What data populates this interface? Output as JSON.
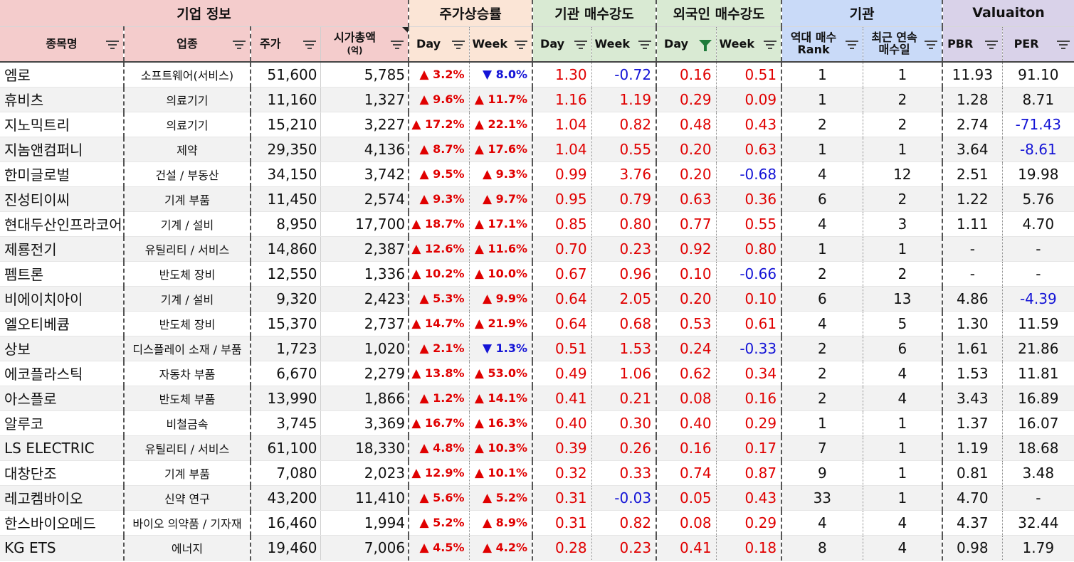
{
  "groups": {
    "company": "기업 정보",
    "price_rise": "주가상승률",
    "inst_strength": "기관 매수강도",
    "foreign_strength": "외국인 매수강도",
    "institution": "기관",
    "valuation": "Valuaiton"
  },
  "headers": {
    "name": "종목명",
    "industry": "업종",
    "price": "주가",
    "mcap_line1": "시가총액",
    "mcap_line2": "(억)",
    "day": "Day",
    "week": "Week",
    "rank_line1": "역대 매수",
    "rank_line2": "Rank",
    "streak_line1": "최근 연속",
    "streak_line2": "매수일",
    "pbr": "PBR",
    "per": "PER"
  },
  "icons": {
    "filter": "filter-icon",
    "active_filter": "funnel-filter-active-icon",
    "up": "▲",
    "down": "▼"
  },
  "colors": {
    "positive": "#e00000",
    "negative": "#1414d6",
    "company_header": "#f4cccc",
    "price_header": "#fbe5d6",
    "flow_header": "#d9ead3",
    "institution_header": "#c9daf8",
    "valuation_header": "#d9d2e9"
  },
  "rows": [
    {
      "name": "엠로",
      "industry": "소프트웨어(서비스)",
      "price": "51,600",
      "mcap": "5,785",
      "day_dir": "▲",
      "day_pct": "3.2%",
      "week_dir": "▼",
      "week_pct": "8.0%",
      "inst_day": "1.30",
      "inst_week": "-0.72",
      "frgn_day": "0.16",
      "frgn_week": "0.51",
      "rank": "1",
      "streak": "1",
      "pbr": "11.93",
      "per": "91.10"
    },
    {
      "name": "휴비츠",
      "industry": "의료기기",
      "price": "11,160",
      "mcap": "1,327",
      "day_dir": "▲",
      "day_pct": "9.6%",
      "week_dir": "▲",
      "week_pct": "11.7%",
      "inst_day": "1.16",
      "inst_week": "1.19",
      "frgn_day": "0.29",
      "frgn_week": "0.09",
      "rank": "1",
      "streak": "2",
      "pbr": "1.28",
      "per": "8.71"
    },
    {
      "name": "지노믹트리",
      "industry": "의료기기",
      "price": "15,210",
      "mcap": "3,227",
      "day_dir": "▲",
      "day_pct": "17.2%",
      "week_dir": "▲",
      "week_pct": "22.1%",
      "inst_day": "1.04",
      "inst_week": "0.82",
      "frgn_day": "0.48",
      "frgn_week": "0.43",
      "rank": "2",
      "streak": "2",
      "pbr": "2.74",
      "per": "-71.43"
    },
    {
      "name": "지놈앤컴퍼니",
      "industry": "제약",
      "price": "29,350",
      "mcap": "4,136",
      "day_dir": "▲",
      "day_pct": "8.7%",
      "week_dir": "▲",
      "week_pct": "17.6%",
      "inst_day": "1.04",
      "inst_week": "0.55",
      "frgn_day": "0.20",
      "frgn_week": "0.63",
      "rank": "1",
      "streak": "1",
      "pbr": "3.64",
      "per": "-8.61"
    },
    {
      "name": "한미글로벌",
      "industry": "건설 / 부동산",
      "price": "34,150",
      "mcap": "3,742",
      "day_dir": "▲",
      "day_pct": "9.5%",
      "week_dir": "▲",
      "week_pct": "9.3%",
      "inst_day": "0.99",
      "inst_week": "3.76",
      "frgn_day": "0.20",
      "frgn_week": "-0.68",
      "rank": "4",
      "streak": "12",
      "pbr": "2.51",
      "per": "19.98"
    },
    {
      "name": "진성티이씨",
      "industry": "기계 부품",
      "price": "11,450",
      "mcap": "2,574",
      "day_dir": "▲",
      "day_pct": "9.3%",
      "week_dir": "▲",
      "week_pct": "9.7%",
      "inst_day": "0.95",
      "inst_week": "0.79",
      "frgn_day": "0.63",
      "frgn_week": "0.36",
      "rank": "6",
      "streak": "2",
      "pbr": "1.22",
      "per": "5.76"
    },
    {
      "name": "현대두산인프라코어",
      "industry": "기계 / 설비",
      "price": "8,950",
      "mcap": "17,700",
      "day_dir": "▲",
      "day_pct": "18.7%",
      "week_dir": "▲",
      "week_pct": "17.1%",
      "inst_day": "0.85",
      "inst_week": "0.80",
      "frgn_day": "0.77",
      "frgn_week": "0.55",
      "rank": "4",
      "streak": "3",
      "pbr": "1.11",
      "per": "4.70"
    },
    {
      "name": "제룡전기",
      "industry": "유틸리티 / 서비스",
      "price": "14,860",
      "mcap": "2,387",
      "day_dir": "▲",
      "day_pct": "12.6%",
      "week_dir": "▲",
      "week_pct": "11.6%",
      "inst_day": "0.70",
      "inst_week": "0.23",
      "frgn_day": "0.92",
      "frgn_week": "0.80",
      "rank": "1",
      "streak": "1",
      "pbr": "-",
      "per": "-"
    },
    {
      "name": "펨트론",
      "industry": "반도체 장비",
      "price": "12,550",
      "mcap": "1,336",
      "day_dir": "▲",
      "day_pct": "10.2%",
      "week_dir": "▲",
      "week_pct": "10.0%",
      "inst_day": "0.67",
      "inst_week": "0.96",
      "frgn_day": "0.10",
      "frgn_week": "-0.66",
      "rank": "2",
      "streak": "2",
      "pbr": "-",
      "per": "-"
    },
    {
      "name": "비에이치아이",
      "industry": "기계 / 설비",
      "price": "9,320",
      "mcap": "2,423",
      "day_dir": "▲",
      "day_pct": "5.3%",
      "week_dir": "▲",
      "week_pct": "9.9%",
      "inst_day": "0.64",
      "inst_week": "2.05",
      "frgn_day": "0.20",
      "frgn_week": "0.10",
      "rank": "6",
      "streak": "13",
      "pbr": "4.86",
      "per": "-4.39"
    },
    {
      "name": "엘오티베큠",
      "industry": "반도체 장비",
      "price": "15,370",
      "mcap": "2,737",
      "day_dir": "▲",
      "day_pct": "14.7%",
      "week_dir": "▲",
      "week_pct": "21.9%",
      "inst_day": "0.64",
      "inst_week": "0.68",
      "frgn_day": "0.53",
      "frgn_week": "0.61",
      "rank": "4",
      "streak": "5",
      "pbr": "1.30",
      "per": "11.59"
    },
    {
      "name": "상보",
      "industry": "디스플레이 소재 / 부품",
      "price": "1,723",
      "mcap": "1,020",
      "day_dir": "▲",
      "day_pct": "2.1%",
      "week_dir": "▼",
      "week_pct": "1.3%",
      "inst_day": "0.51",
      "inst_week": "1.53",
      "frgn_day": "0.24",
      "frgn_week": "-0.33",
      "rank": "2",
      "streak": "6",
      "pbr": "1.61",
      "per": "21.86"
    },
    {
      "name": "에코플라스틱",
      "industry": "자동차 부품",
      "price": "6,670",
      "mcap": "2,279",
      "day_dir": "▲",
      "day_pct": "13.8%",
      "week_dir": "▲",
      "week_pct": "53.0%",
      "inst_day": "0.49",
      "inst_week": "1.06",
      "frgn_day": "0.62",
      "frgn_week": "0.34",
      "rank": "2",
      "streak": "4",
      "pbr": "1.53",
      "per": "11.81"
    },
    {
      "name": "아스플로",
      "industry": "반도체 부품",
      "price": "13,990",
      "mcap": "1,866",
      "day_dir": "▲",
      "day_pct": "1.2%",
      "week_dir": "▲",
      "week_pct": "14.1%",
      "inst_day": "0.41",
      "inst_week": "0.21",
      "frgn_day": "0.08",
      "frgn_week": "0.16",
      "rank": "2",
      "streak": "4",
      "pbr": "3.43",
      "per": "16.89"
    },
    {
      "name": "알루코",
      "industry": "비철금속",
      "price": "3,745",
      "mcap": "3,369",
      "day_dir": "▲",
      "day_pct": "16.7%",
      "week_dir": "▲",
      "week_pct": "16.3%",
      "inst_day": "0.40",
      "inst_week": "0.30",
      "frgn_day": "0.40",
      "frgn_week": "0.29",
      "rank": "1",
      "streak": "1",
      "pbr": "1.37",
      "per": "16.07"
    },
    {
      "name": "LS ELECTRIC",
      "industry": "유틸리티 / 서비스",
      "price": "61,100",
      "mcap": "18,330",
      "day_dir": "▲",
      "day_pct": "4.8%",
      "week_dir": "▲",
      "week_pct": "10.3%",
      "inst_day": "0.39",
      "inst_week": "0.26",
      "frgn_day": "0.16",
      "frgn_week": "0.17",
      "rank": "7",
      "streak": "1",
      "pbr": "1.19",
      "per": "18.68"
    },
    {
      "name": "대창단조",
      "industry": "기계 부품",
      "price": "7,080",
      "mcap": "2,023",
      "day_dir": "▲",
      "day_pct": "12.9%",
      "week_dir": "▲",
      "week_pct": "10.1%",
      "inst_day": "0.32",
      "inst_week": "0.33",
      "frgn_day": "0.74",
      "frgn_week": "0.87",
      "rank": "9",
      "streak": "1",
      "pbr": "0.81",
      "per": "3.48"
    },
    {
      "name": "레고켐바이오",
      "industry": "신약 연구",
      "price": "43,200",
      "mcap": "11,410",
      "day_dir": "▲",
      "day_pct": "5.6%",
      "week_dir": "▲",
      "week_pct": "5.2%",
      "inst_day": "0.31",
      "inst_week": "-0.03",
      "frgn_day": "0.05",
      "frgn_week": "0.43",
      "rank": "33",
      "streak": "1",
      "pbr": "4.70",
      "per": "-"
    },
    {
      "name": "한스바이오메드",
      "industry": "바이오 의약품 / 기자재",
      "price": "16,460",
      "mcap": "1,994",
      "day_dir": "▲",
      "day_pct": "5.2%",
      "week_dir": "▲",
      "week_pct": "8.9%",
      "inst_day": "0.31",
      "inst_week": "0.82",
      "frgn_day": "0.08",
      "frgn_week": "0.29",
      "rank": "4",
      "streak": "4",
      "pbr": "4.37",
      "per": "32.44"
    },
    {
      "name": "KG ETS",
      "industry": "에너지",
      "price": "19,460",
      "mcap": "7,006",
      "day_dir": "▲",
      "day_pct": "4.5%",
      "week_dir": "▲",
      "week_pct": "4.2%",
      "inst_day": "0.28",
      "inst_week": "0.23",
      "frgn_day": "0.41",
      "frgn_week": "0.18",
      "rank": "8",
      "streak": "4",
      "pbr": "0.98",
      "per": "1.79"
    }
  ]
}
